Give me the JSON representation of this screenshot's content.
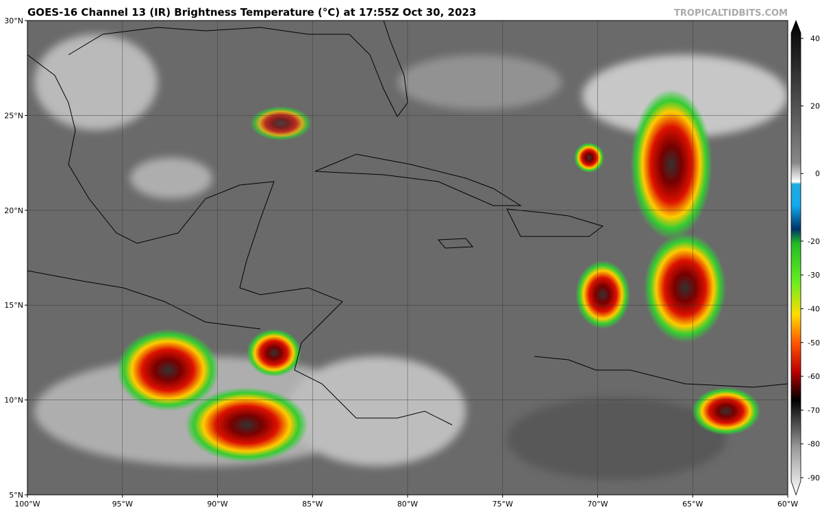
{
  "header": {
    "title": "GOES-16 Channel 13 (IR) Brightness Temperature (°C) at 17:55Z Oct 30, 2023",
    "source": "TROPICALTIDBITS.COM"
  },
  "map": {
    "lon_ticks": [
      {
        "value": -100,
        "label": "100°W"
      },
      {
        "value": -95,
        "label": "95°W"
      },
      {
        "value": -90,
        "label": "90°W"
      },
      {
        "value": -85,
        "label": "85°W"
      },
      {
        "value": -80,
        "label": "80°W"
      },
      {
        "value": -75,
        "label": "75°W"
      },
      {
        "value": -70,
        "label": "70°W"
      },
      {
        "value": -65,
        "label": "65°W"
      },
      {
        "value": -60,
        "label": "60°W"
      }
    ],
    "lat_ticks": [
      {
        "value": 30,
        "label": "30°N"
      },
      {
        "value": 25,
        "label": "25°N"
      },
      {
        "value": 20,
        "label": "20°N"
      },
      {
        "value": 15,
        "label": "15°N"
      },
      {
        "value": 10,
        "label": "10°N"
      },
      {
        "value": 5,
        "label": "5°N"
      }
    ]
  },
  "colorbar": {
    "ticks": [
      40,
      20,
      0,
      -20,
      -30,
      -40,
      -50,
      -60,
      -70,
      -80,
      -90
    ]
  }
}
